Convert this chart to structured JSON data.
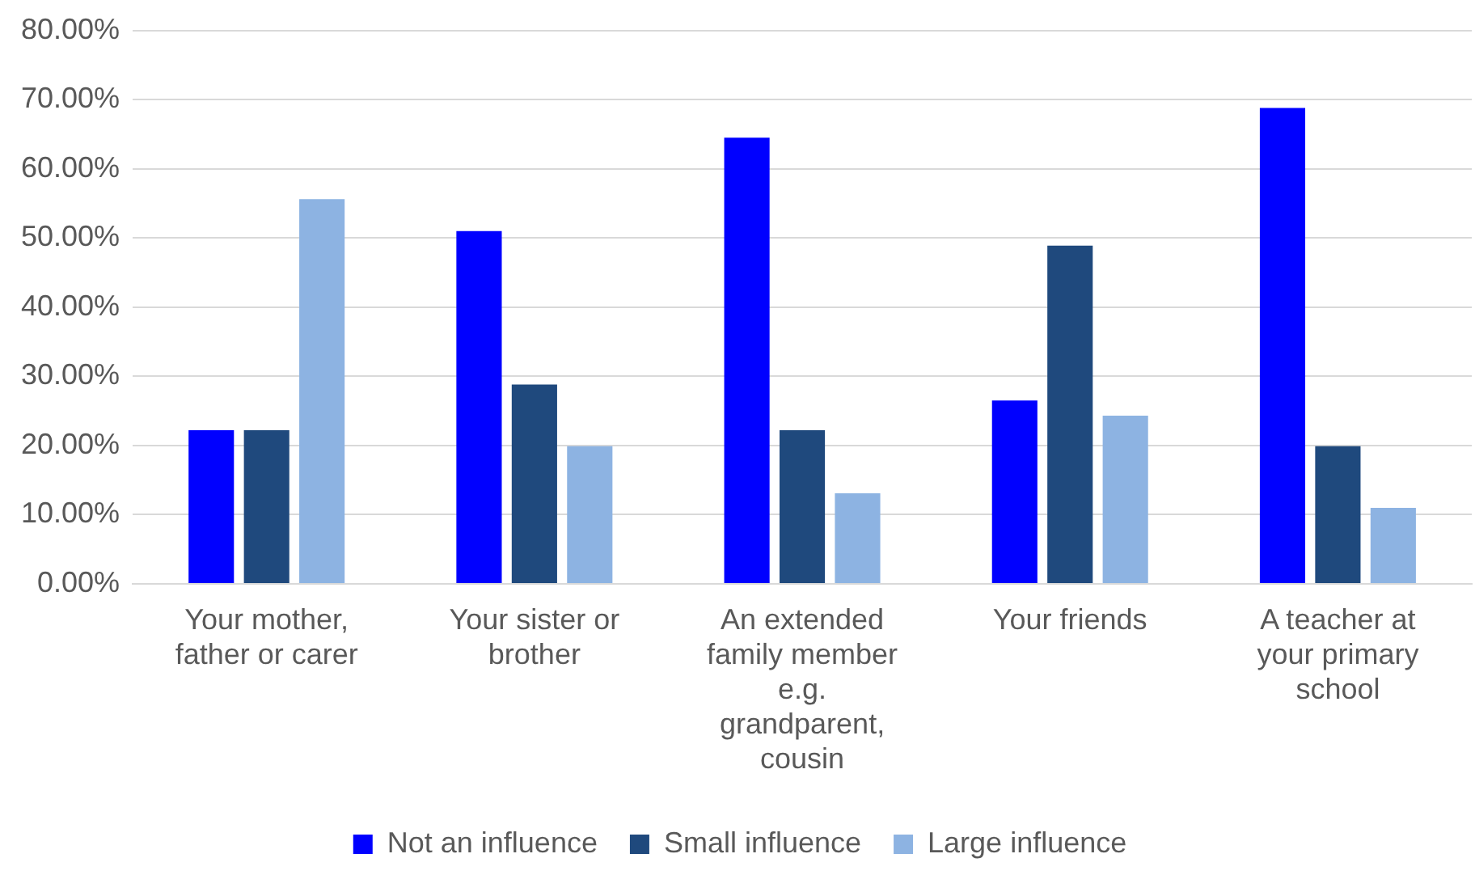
{
  "chart_data": {
    "type": "bar",
    "categories": [
      "Your mother, father or carer",
      "Your sister or brother",
      "An extended family member e.g. grandparent, cousin",
      "Your friends",
      "A teacher at your primary school"
    ],
    "series": [
      {
        "name": "Not an influence",
        "color": "#0000ff",
        "values": [
          22.2,
          51.0,
          64.5,
          26.5,
          68.8
        ]
      },
      {
        "name": "Small influence",
        "color": "#1f497d",
        "values": [
          22.2,
          28.8,
          22.2,
          48.9,
          19.9
        ]
      },
      {
        "name": "Large influence",
        "color": "#8db3e2",
        "values": [
          55.6,
          19.9,
          13.1,
          24.3,
          11.0
        ]
      }
    ],
    "ylim": [
      0,
      80
    ],
    "yticks": [
      {
        "value": 0,
        "label": "0.00%"
      },
      {
        "value": 10,
        "label": "10.00%"
      },
      {
        "value": 20,
        "label": "20.00%"
      },
      {
        "value": 30,
        "label": "30.00%"
      },
      {
        "value": 40,
        "label": "40.00%"
      },
      {
        "value": 50,
        "label": "50.00%"
      },
      {
        "value": 60,
        "label": "60.00%"
      },
      {
        "value": 70,
        "label": "70.00%"
      },
      {
        "value": 80,
        "label": "80.00%"
      }
    ],
    "grid": "y",
    "legend": "bottom"
  }
}
